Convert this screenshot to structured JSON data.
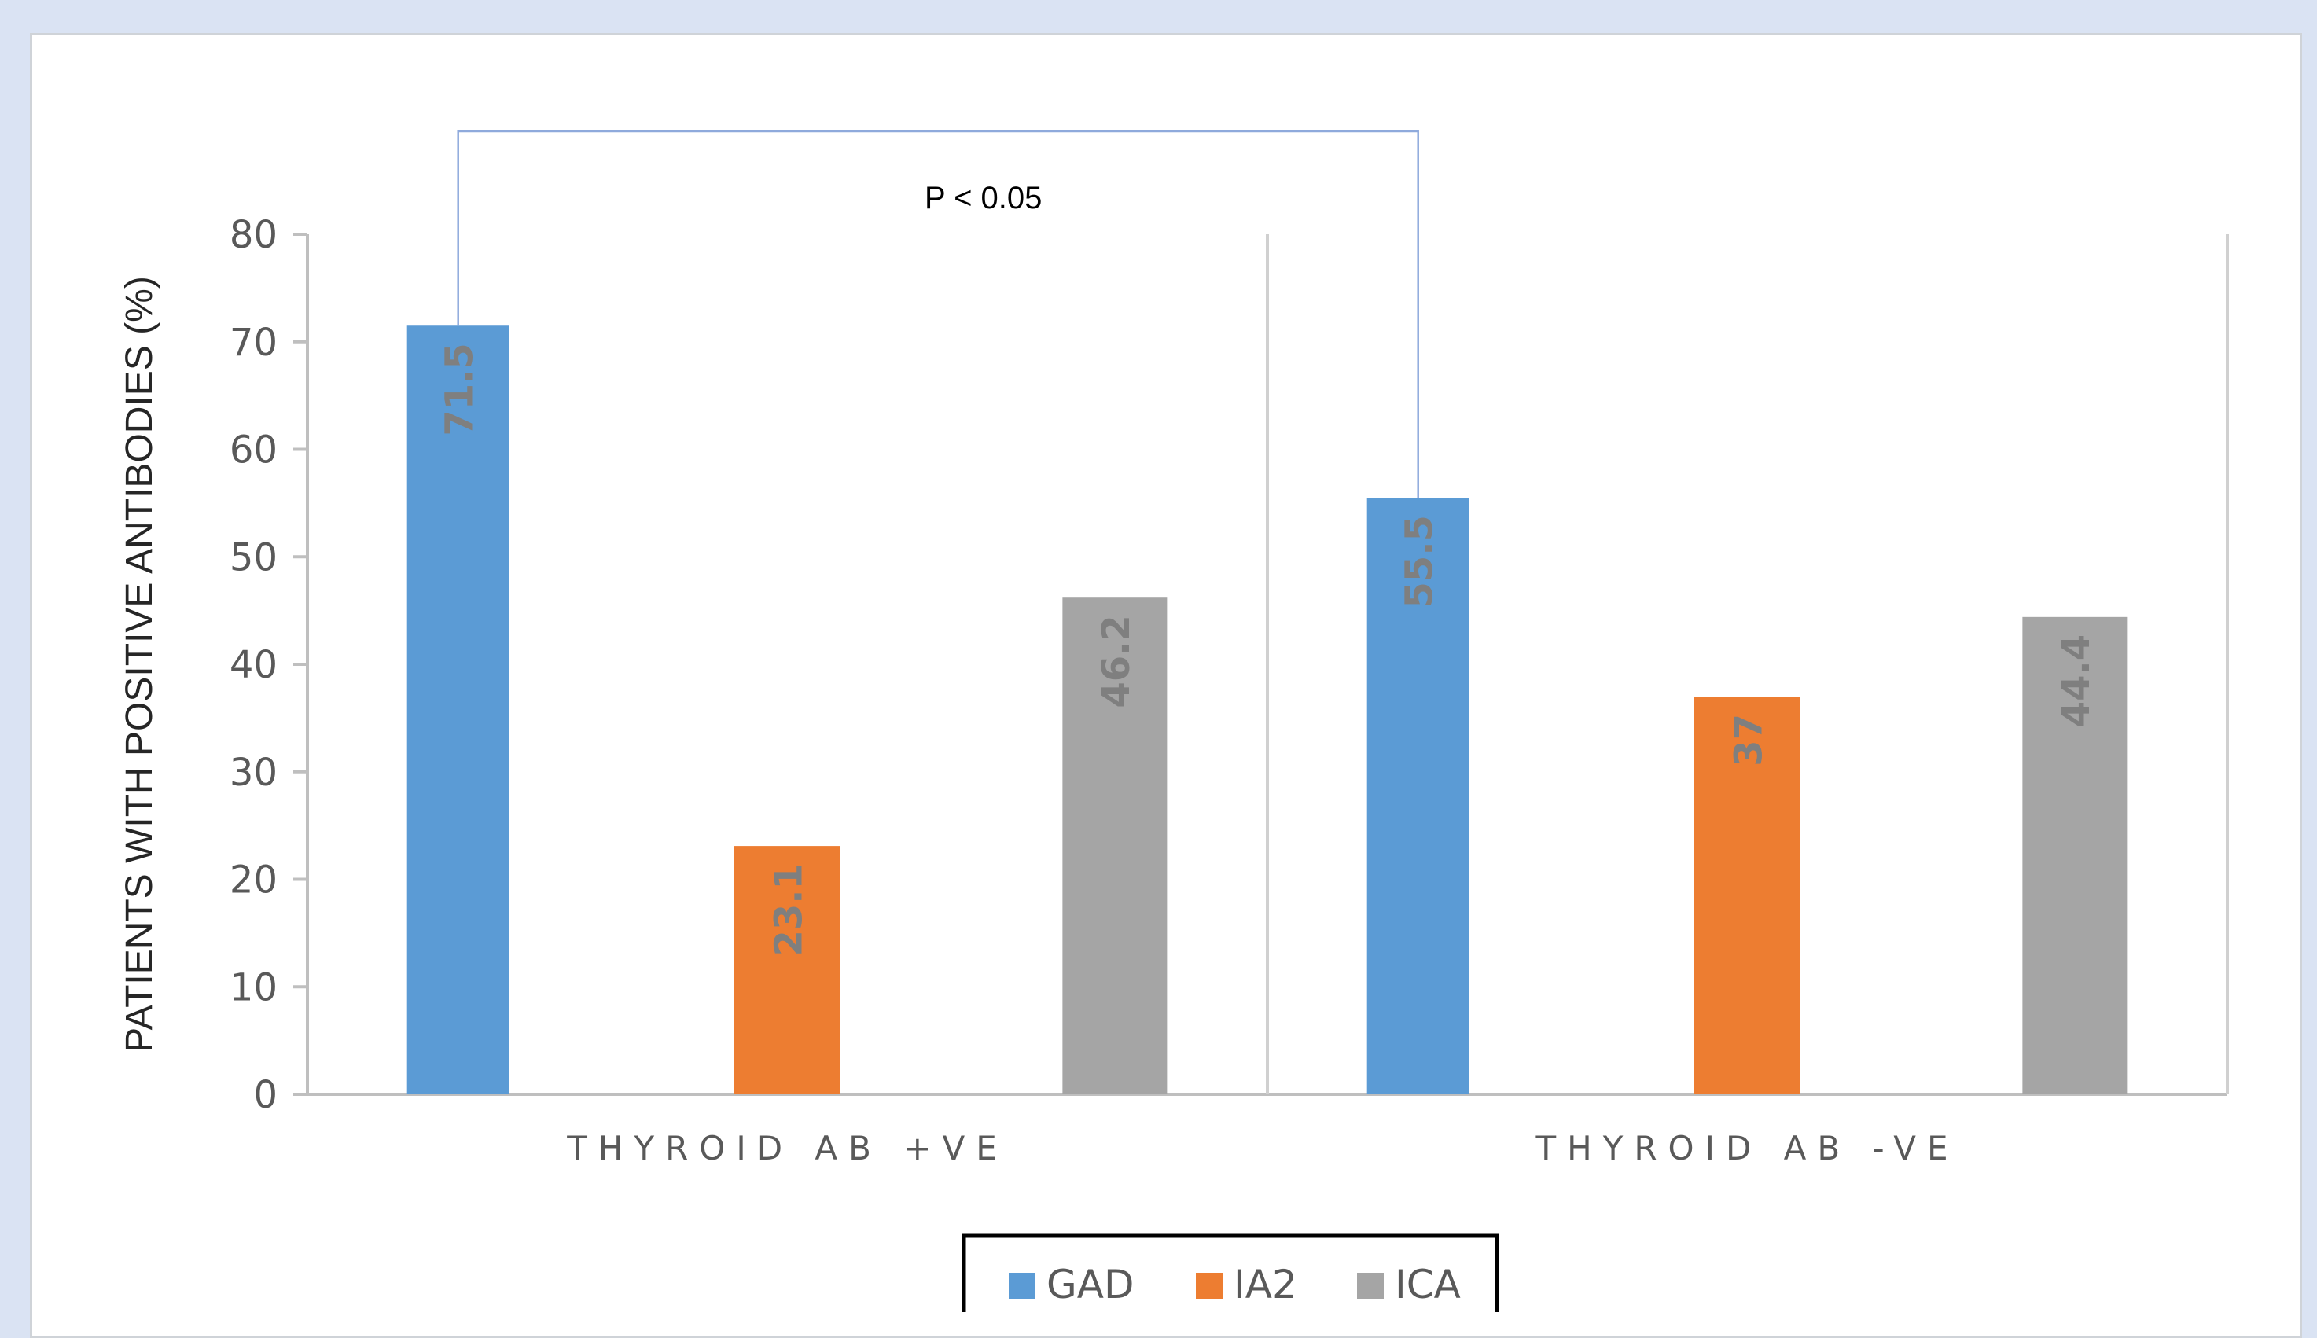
{
  "chart_data": {
    "type": "bar",
    "categories": [
      "THYROID AB +VE",
      "THYROID AB -VE"
    ],
    "series": [
      {
        "name": "GAD",
        "values": [
          71.5,
          55.5
        ],
        "color": "#5b9bd5"
      },
      {
        "name": "IA2",
        "values": [
          23.1,
          37
        ],
        "color": "#ed7d31"
      },
      {
        "name": "ICA",
        "values": [
          46.2,
          44.4
        ],
        "color": "#a5a5a5"
      }
    ],
    "data_labels": [
      [
        "71.5",
        "55.5"
      ],
      [
        "23.1",
        "37"
      ],
      [
        "46.2",
        "44.4"
      ]
    ],
    "ylabel": "PATIENTS WITH POSITIVE ANTIBODIES (%)",
    "xlabel": "",
    "ylim": [
      0,
      80
    ],
    "yticks": [
      0,
      10,
      20,
      30,
      40,
      50,
      60,
      70,
      80
    ],
    "annotation": "P < 0.05",
    "bracket_compares": "GAD",
    "legend_position": "bottom",
    "grid": false
  }
}
